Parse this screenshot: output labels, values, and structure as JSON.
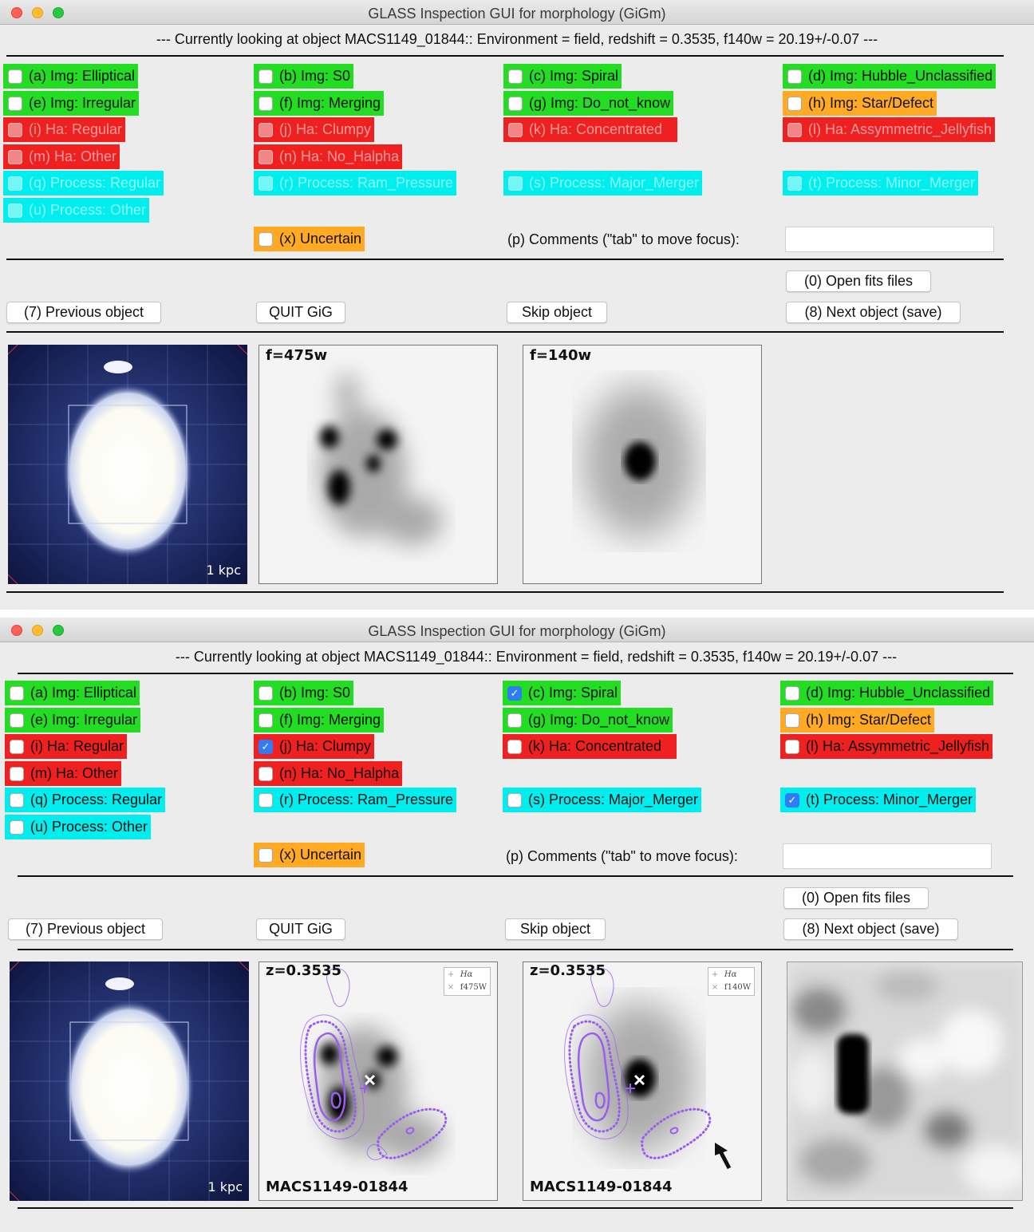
{
  "window_title": "GLASS Inspection GUI for morphology (GiGm)",
  "info_line": "--- Currently looking at object MACS1149_01844:: Environment = field, redshift = 0.3535, f140w  = 20.19+/-0.07 ---",
  "options": {
    "a": "(a) Img: Elliptical",
    "b": "(b) Img: S0",
    "c": "(c) Img: Spiral",
    "d": "(d) Img: Hubble_Unclassified",
    "e": "(e) Img: Irregular",
    "f": "(f) Img: Merging",
    "g": "(g) Img: Do_not_know",
    "h": "(h) Img: Star/Defect",
    "i": "(i) Ha: Regular",
    "j": "(j) Ha: Clumpy",
    "k": "(k) Ha: Concentrated",
    "l": "(l) Ha: Assymmetric_Jellyfish",
    "m": "(m) Ha: Other",
    "n": "(n) Ha: No_Halpha",
    "q": "(q) Process: Regular",
    "r": "(r) Process: Ram_Pressure",
    "s": "(s) Process: Major_Merger",
    "t": "(t) Process: Minor_Merger",
    "u": "(u) Process: Other",
    "x": "(x) Uncertain"
  },
  "window2_checked": [
    "c",
    "j",
    "t"
  ],
  "comments_label": "(p) Comments (\"tab\" to move focus):",
  "comments_value": "",
  "buttons": {
    "open_fits": "(0) Open fits files",
    "previous": "(7) Previous object",
    "quit": "QUIT GiG",
    "skip": "Skip object",
    "next": "(8) Next object (save)"
  },
  "panels": {
    "scale_bar": "1 kpc",
    "f475w_label": "f=475w",
    "f140w_label": "f=140w",
    "z_label": "z=0.3535",
    "object_name": "MACS1149-01844",
    "legend_ha": "Hα",
    "legend_f475w": "f475W",
    "legend_f140w": "f140W"
  },
  "colors": {
    "green": "#22dd22",
    "red": "#ee2020",
    "cyan": "#00eeee",
    "orange": "#ffaa22",
    "contour": "#9b5cf0",
    "check": "#2f7cf6"
  }
}
